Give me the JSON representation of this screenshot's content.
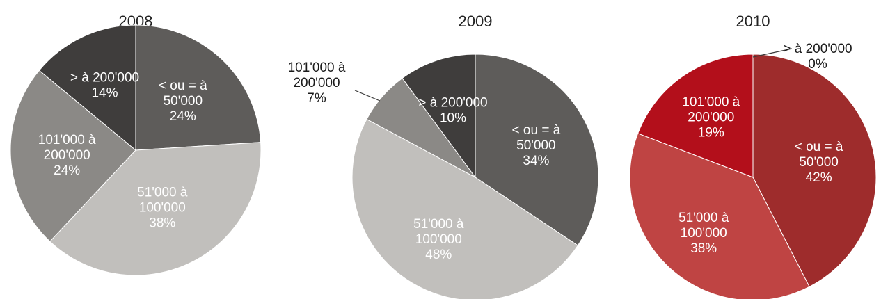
{
  "chart_data": [
    {
      "type": "pie",
      "title": "2008",
      "start_angle_deg": 0,
      "slices": [
        {
          "label": [
            "< ou = à",
            "50'000",
            "24%"
          ],
          "value": 24,
          "color": "#5e5c5a",
          "text_color": "#ffffff"
        },
        {
          "label": [
            "51'000 à",
            "100'000",
            "38%"
          ],
          "value": 38,
          "color": "#c1bfbc",
          "text_color": "#ffffff"
        },
        {
          "label": [
            "101'000 à",
            "200'000",
            "24%"
          ],
          "value": 24,
          "color": "#8b8986",
          "text_color": "#ffffff"
        },
        {
          "label": [
            "> à 200'000",
            "14%"
          ],
          "value": 14,
          "color": "#3f3d3c",
          "text_color": "#ffffff"
        }
      ]
    },
    {
      "type": "pie",
      "title": "2009",
      "start_angle_deg": 0,
      "slices": [
        {
          "label": [
            "< ou = à",
            "50'000",
            "34%"
          ],
          "value": 34,
          "color": "#5e5c5a",
          "text_color": "#ffffff"
        },
        {
          "label": [
            "51'000 à",
            "100'000",
            "48%"
          ],
          "value": 48,
          "color": "#c1bfbc",
          "text_color": "#ffffff"
        },
        {
          "label": [
            "101'000 à",
            "200'000",
            "7%"
          ],
          "value": 7,
          "color": "#8b8986",
          "text_color": "#1a1a1a",
          "outside": true
        },
        {
          "label": [
            "> à 200'000",
            "10%"
          ],
          "value": 10,
          "color": "#3f3d3c",
          "text_color": "#ffffff"
        }
      ]
    },
    {
      "type": "pie",
      "title": "2010",
      "start_angle_deg": 0,
      "slices": [
        {
          "label": [
            "< ou = à",
            "50'000",
            "42%"
          ],
          "value": 42,
          "color": "#9e2c2c",
          "text_color": "#ffffff"
        },
        {
          "label": [
            "51'000 à",
            "100'000",
            "38%"
          ],
          "value": 38,
          "color": "#bf4443",
          "text_color": "#ffffff"
        },
        {
          "label": [
            "101'000 à",
            "200'000",
            "19%"
          ],
          "value": 19,
          "color": "#b30f1b",
          "text_color": "#ffffff"
        },
        {
          "label": [
            "> à 200'000",
            "0%"
          ],
          "value": 0,
          "color": "#7a1a1a",
          "text_color": "#1a1a1a",
          "outside": true
        }
      ]
    }
  ]
}
